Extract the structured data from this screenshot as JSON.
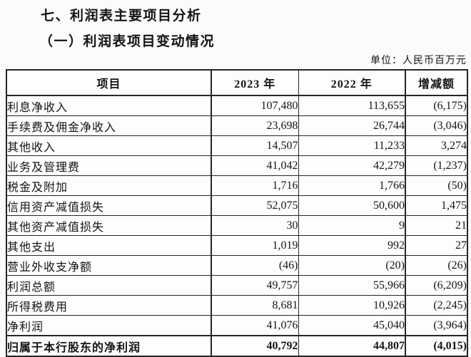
{
  "page": {
    "title": "七、利润表主要项目分析",
    "subtitle": "（一）利润表项目变动情况",
    "unit_note": "单位：人民币百万元"
  },
  "table": {
    "columns": [
      "项目",
      "2023 年",
      "2022 年",
      "增减额"
    ],
    "rows": [
      {
        "item": "利息净收入",
        "y2023": "107,480",
        "y2022": "113,655",
        "change": "(6,175)",
        "bold": false
      },
      {
        "item": "手续费及佣金净收入",
        "y2023": "23,698",
        "y2022": "26,744",
        "change": "(3,046)",
        "bold": false
      },
      {
        "item": "其他收入",
        "y2023": "14,507",
        "y2022": "11,233",
        "change": "3,274",
        "bold": false
      },
      {
        "item": "业务及管理费",
        "y2023": "41,042",
        "y2022": "42,279",
        "change": "(1,237)",
        "bold": false
      },
      {
        "item": "税金及附加",
        "y2023": "1,716",
        "y2022": "1,766",
        "change": "(50)",
        "bold": false
      },
      {
        "item": "信用资产减值损失",
        "y2023": "52,075",
        "y2022": "50,600",
        "change": "1,475",
        "bold": false
      },
      {
        "item": "其他资产减值损失",
        "y2023": "30",
        "y2022": "9",
        "change": "21",
        "bold": false
      },
      {
        "item": "其他支出",
        "y2023": "1,019",
        "y2022": "992",
        "change": "27",
        "bold": false
      },
      {
        "item": "营业外收支净额",
        "y2023": "(46)",
        "y2022": "(20)",
        "change": "(26)",
        "bold": false
      },
      {
        "item": "利润总额",
        "y2023": "49,757",
        "y2022": "55,966",
        "change": "(6,209)",
        "bold": false
      },
      {
        "item": "所得税费用",
        "y2023": "8,681",
        "y2022": "10,926",
        "change": "(2,245)",
        "bold": false
      },
      {
        "item": "净利润",
        "y2023": "41,076",
        "y2022": "45,040",
        "change": "(3,964)",
        "bold": false
      },
      {
        "item": "归属于本行股东的净利润",
        "y2023": "40,792",
        "y2022": "44,807",
        "change": "(4,015)",
        "bold": true
      }
    ]
  },
  "colors": {
    "text": "#141414",
    "border": "#262626",
    "background": "#fbfbfb",
    "table_background": "#fdfdfd"
  }
}
